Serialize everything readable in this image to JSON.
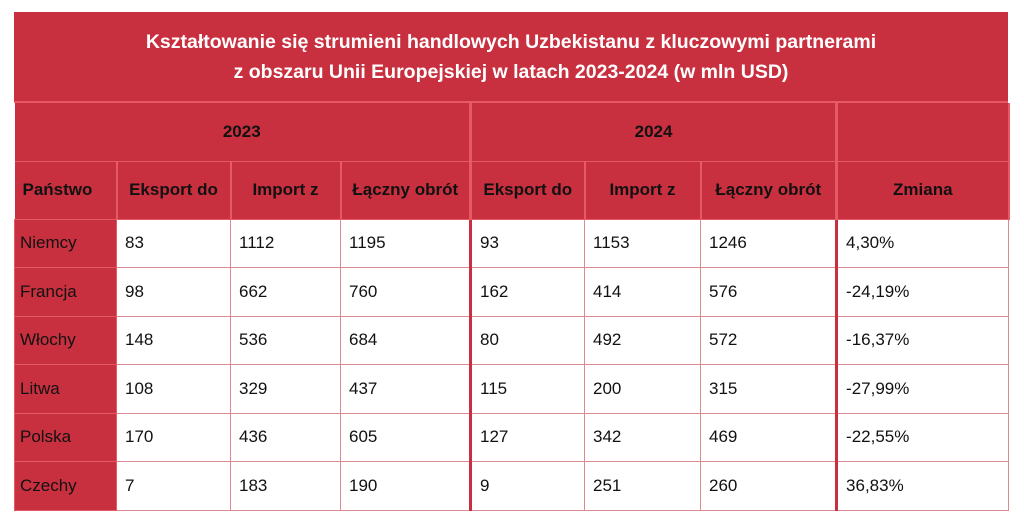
{
  "title": {
    "line1": "Kształtowanie się strumieni handlowych Uzbekistanu z kluczowymi partnerami",
    "line2": "z obszaru Unii Europejskiej w latach 2023-2024 (w mln USD)"
  },
  "years": [
    "2023",
    "2024"
  ],
  "columns": [
    "Państwo",
    "Eksport do",
    "Import z",
    "Łączny obrót",
    "Eksport do",
    "Import z",
    "Łączny obrót",
    "Zmiana"
  ],
  "rows": [
    [
      "Niemcy",
      "83",
      "1112",
      "1195",
      "93",
      "1153",
      "1246",
      "4,30%"
    ],
    [
      "Francja",
      "98",
      "662",
      "760",
      "162",
      "414",
      "576",
      "-24,19%"
    ],
    [
      "Włochy",
      "148",
      "536",
      "684",
      "80",
      "492",
      "572",
      "-16,37%"
    ],
    [
      "Litwa",
      "108",
      "329",
      "437",
      "115",
      "200",
      "315",
      "-27,99%"
    ],
    [
      "Polska",
      "170",
      "436",
      "605",
      "127",
      "342",
      "469",
      "-22,55%"
    ],
    [
      "Czechy",
      "7",
      "183",
      "190",
      "9",
      "251",
      "260",
      "36,83%"
    ]
  ],
  "colors": {
    "header": "#c9303f",
    "header_text": "#ffffff",
    "grid": "#d98a93"
  }
}
